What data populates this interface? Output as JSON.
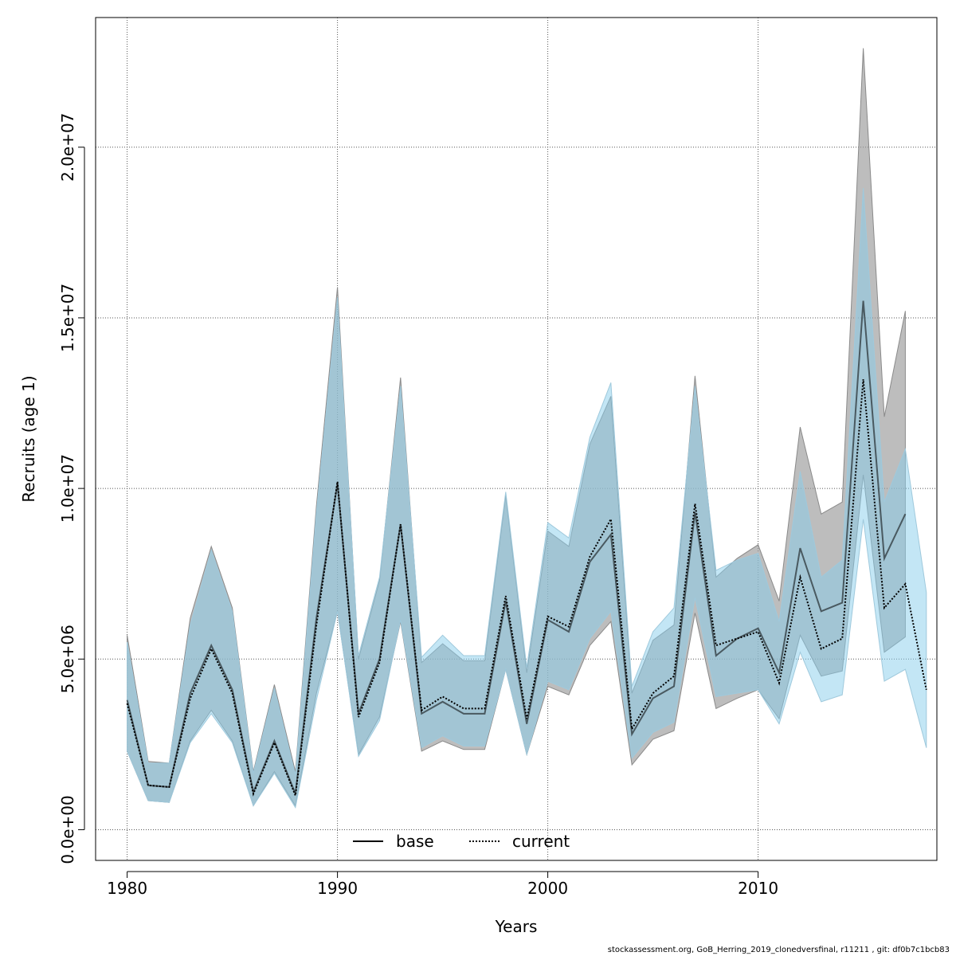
{
  "chart_data": {
    "type": "area",
    "xlabel": "Years",
    "ylabel": "Recruits (age 1)",
    "xlim": [
      1978.5,
      2018.5
    ],
    "ylim": [
      -900000,
      23800000
    ],
    "x_ticks": [
      1980,
      1990,
      2000,
      2010
    ],
    "x_tick_labels": [
      "1980",
      "1990",
      "2000",
      "2010"
    ],
    "y_ticks": [
      0,
      5000000,
      10000000,
      15000000,
      20000000
    ],
    "y_tick_labels": [
      "0.0e+00",
      "5.0e+06",
      "1.0e+07",
      "1.5e+07",
      "2.0e+07"
    ],
    "grid": true,
    "legend_position": "bottom-center",
    "series": [
      {
        "name": "base",
        "line_style": "solid",
        "line_color": "#000000",
        "band_color": "#9a9a9a",
        "x": [
          1980,
          1981,
          1982,
          1983,
          1984,
          1985,
          1986,
          1987,
          1988,
          1989,
          1990,
          1991,
          1992,
          1993,
          1994,
          1995,
          1996,
          1997,
          1998,
          1999,
          2000,
          2001,
          2002,
          2003,
          2004,
          2005,
          2006,
          2007,
          2008,
          2009,
          2010,
          2011,
          2012,
          2013,
          2014,
          2015,
          2016,
          2017
        ],
        "values": [
          3800000,
          1300000,
          1250000,
          4000000,
          5400000,
          4100000,
          1100000,
          2600000,
          1050000,
          6200000,
          10150000,
          3400000,
          5000000,
          8950000,
          3400000,
          3750000,
          3400000,
          3400000,
          6700000,
          3100000,
          6150000,
          5800000,
          7850000,
          8650000,
          2800000,
          3850000,
          4200000,
          9300000,
          5100000,
          5600000,
          5900000,
          4600000,
          8250000,
          6400000,
          6650000,
          15500000,
          7950000,
          9250000
        ],
        "lower": [
          2300000,
          850000,
          800000,
          2600000,
          3500000,
          2600000,
          700000,
          1700000,
          700000,
          4000000,
          6400000,
          2200000,
          3300000,
          6100000,
          2300000,
          2600000,
          2350000,
          2350000,
          4700000,
          2200000,
          4200000,
          3950000,
          5400000,
          6100000,
          1900000,
          2650000,
          2900000,
          6350000,
          3550000,
          3850000,
          4100000,
          3250000,
          5700000,
          4500000,
          4650000,
          10400000,
          5200000,
          5650000
        ],
        "upper": [
          5700000,
          2000000,
          1950000,
          6200000,
          8300000,
          6500000,
          1700000,
          4250000,
          1700000,
          9500000,
          15900000,
          5000000,
          7300000,
          13250000,
          4900000,
          5450000,
          4950000,
          4950000,
          9800000,
          4600000,
          8750000,
          8300000,
          11300000,
          12700000,
          4000000,
          5550000,
          6000000,
          13300000,
          7400000,
          7950000,
          8350000,
          6700000,
          11800000,
          9250000,
          9600000,
          22900000,
          12100000,
          15200000
        ]
      },
      {
        "name": "current",
        "line_style": "dotted",
        "line_color": "#000000",
        "band_color": "#87ceeb",
        "x": [
          1980,
          1981,
          1982,
          1983,
          1984,
          1985,
          1986,
          1987,
          1988,
          1989,
          1990,
          1991,
          1992,
          1993,
          1994,
          1995,
          1996,
          1997,
          1998,
          1999,
          2000,
          2001,
          2002,
          2003,
          2004,
          2005,
          2006,
          2007,
          2008,
          2009,
          2010,
          2011,
          2012,
          2013,
          2014,
          2015,
          2016,
          2017,
          2018
        ],
        "values": [
          3700000,
          1300000,
          1250000,
          3850000,
          5300000,
          4000000,
          1050000,
          2550000,
          1000000,
          6000000,
          10200000,
          3300000,
          4900000,
          8950000,
          3500000,
          3900000,
          3550000,
          3550000,
          6850000,
          3250000,
          6250000,
          5950000,
          8000000,
          9100000,
          2950000,
          4000000,
          4500000,
          9550000,
          5400000,
          5600000,
          5800000,
          4300000,
          7400000,
          5300000,
          5600000,
          13200000,
          6500000,
          7200000,
          4100000
        ],
        "lower": [
          2300000,
          850000,
          800000,
          2550000,
          3400000,
          2550000,
          700000,
          1650000,
          650000,
          3800000,
          6400000,
          2150000,
          3200000,
          6150000,
          2400000,
          2750000,
          2450000,
          2450000,
          4700000,
          2200000,
          4350000,
          4100000,
          5600000,
          6400000,
          2100000,
          2850000,
          3150000,
          6800000,
          3900000,
          4000000,
          4100000,
          3100000,
          5200000,
          3750000,
          3950000,
          9100000,
          4350000,
          4700000,
          2400000
        ],
        "upper": [
          5500000,
          1950000,
          1950000,
          6000000,
          8200000,
          6400000,
          1650000,
          4150000,
          1600000,
          9300000,
          15600000,
          5100000,
          7400000,
          13000000,
          5050000,
          5700000,
          5100000,
          5100000,
          9900000,
          4750000,
          9000000,
          8550000,
          11500000,
          13100000,
          4200000,
          5800000,
          6500000,
          13000000,
          7600000,
          7900000,
          8100000,
          6100000,
          10500000,
          7400000,
          7900000,
          18800000,
          9600000,
          11150000,
          6950000
        ]
      }
    ]
  },
  "footer": "stockassessment.org, GoB_Herring_2019_clonedversfinal, r11211 , git: df0b7c1bcb83"
}
